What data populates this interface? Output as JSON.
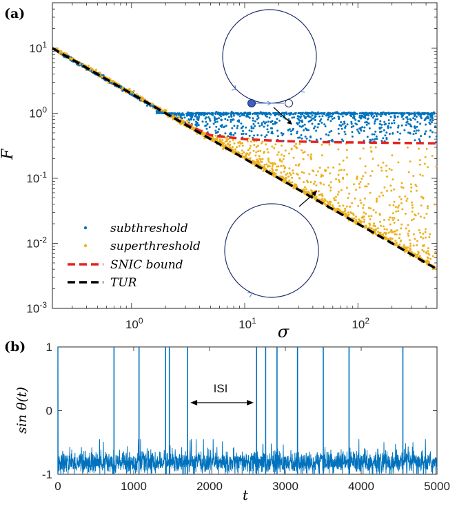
{
  "chart_data": [
    {
      "type": "scatter",
      "panel_label": "(a)",
      "title": "",
      "xlabel": "σ",
      "ylabel": "F",
      "xscale": "log",
      "yscale": "log",
      "xlim": [
        0.2,
        500
      ],
      "ylim": [
        0.001,
        50
      ],
      "xticks": [
        {
          "value": 1,
          "base": "10",
          "exp": "0"
        },
        {
          "value": 10,
          "base": "10",
          "exp": "1"
        },
        {
          "value": 100,
          "base": "10",
          "exp": "2"
        }
      ],
      "yticks": [
        {
          "value": 10,
          "base": "10",
          "exp": "1"
        },
        {
          "value": 1,
          "base": "10",
          "exp": "0"
        },
        {
          "value": 0.1,
          "base": "10",
          "exp": "-1"
        },
        {
          "value": 0.01,
          "base": "10",
          "exp": "-2"
        },
        {
          "value": 0.001,
          "base": "10",
          "exp": "-3"
        }
      ],
      "legend_position": "bottom-left",
      "series": [
        {
          "name": "subthreshold",
          "kind": "points",
          "color": "#0072BD",
          "description_plateau": 1.0
        },
        {
          "name": "superthreshold",
          "kind": "points",
          "color": "#EDB120"
        },
        {
          "name": "SNIC bound",
          "kind": "dashed-line",
          "color": "#E8221D",
          "x": [
            0.2,
            1,
            2,
            3,
            5,
            10,
            20,
            50,
            100,
            200,
            500
          ],
          "y": [
            10,
            2.0,
            1.0,
            0.68,
            0.46,
            0.4,
            0.375,
            0.36,
            0.355,
            0.35,
            0.345
          ]
        },
        {
          "name": "TUR",
          "kind": "dashed-line",
          "color": "#000000",
          "x": [
            0.2,
            500
          ],
          "y": [
            10,
            0.004
          ]
        }
      ]
    },
    {
      "type": "line",
      "panel_label": "(b)",
      "title": "",
      "xlabel": "t",
      "ylabel": "sin θ(t)",
      "xlim": [
        0,
        5000
      ],
      "ylim": [
        -1,
        1
      ],
      "xticks": [
        "0",
        "1000",
        "2000",
        "3000",
        "4000",
        "5000"
      ],
      "yticks": [
        "1",
        "0",
        "-1"
      ],
      "color": "#0072BD",
      "spike_times": [
        740,
        1070,
        1420,
        1470,
        1710,
        2620,
        2740,
        2890,
        3160,
        3500,
        3840,
        4550
      ],
      "annotation": "ISI",
      "annotation_range": [
        1710,
        2620
      ]
    }
  ]
}
